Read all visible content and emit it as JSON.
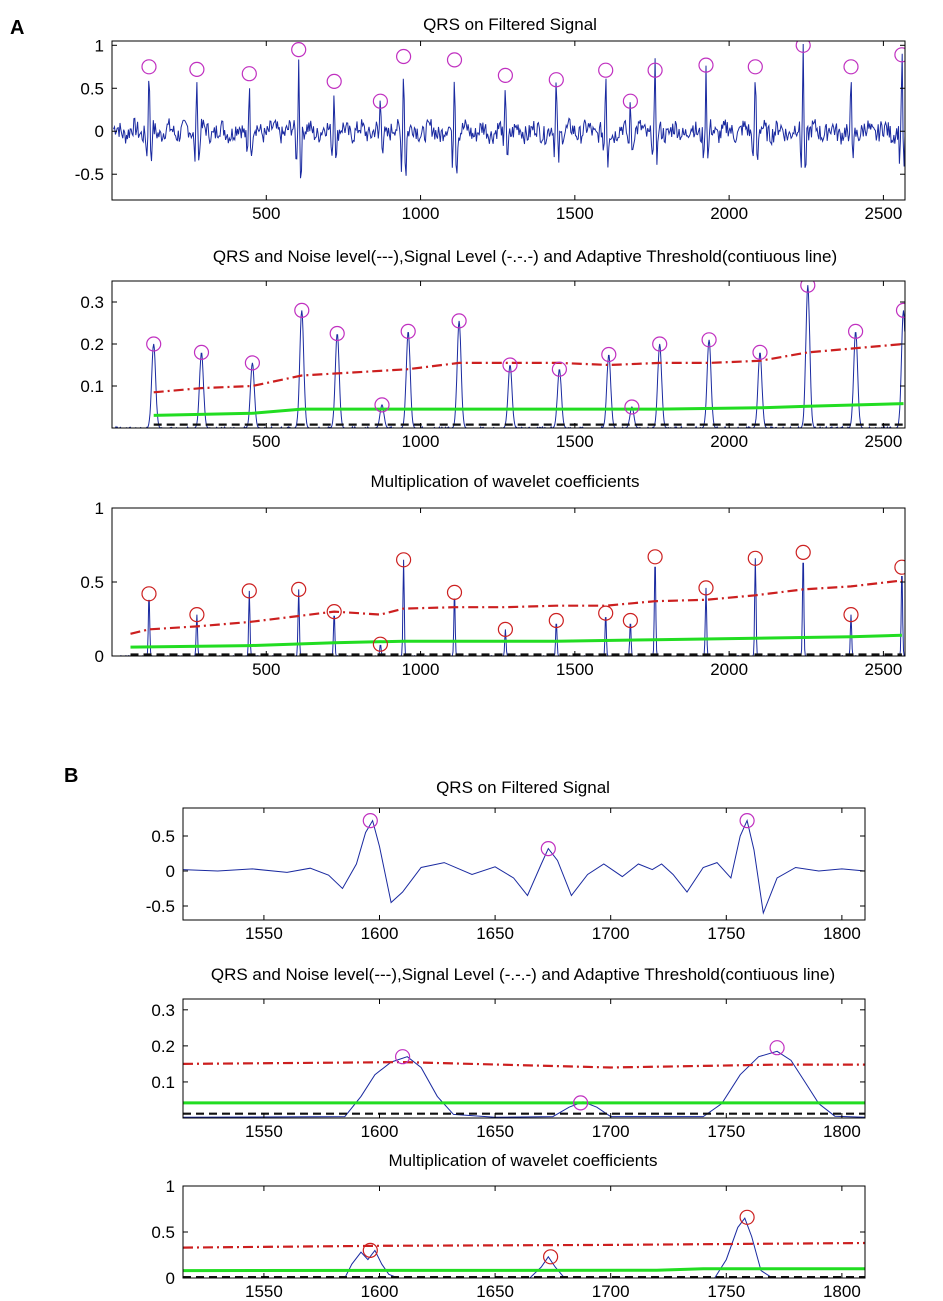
{
  "figure": {
    "panel_labels": [
      "A",
      "B"
    ]
  },
  "colors": {
    "signal": "#1a2aa0",
    "peak_marker": "#c030c0",
    "peak_marker_alt": "#cc2020",
    "signal_level": "#cc1f1f",
    "threshold": "#22dd22",
    "noise_level": "#111111"
  },
  "chart_data": [
    {
      "panel": "A",
      "type": "line",
      "title": "QRS on Filtered Signal",
      "xlim": [
        0,
        2570
      ],
      "ylim": [
        -0.8,
        1.05
      ],
      "xticks": [
        500,
        1000,
        1500,
        2000,
        2500
      ],
      "xticklabels": [
        "500",
        "1000",
        "1500",
        "2000",
        "2500"
      ],
      "yticks": [
        -0.5,
        0,
        0.5,
        1
      ],
      "yticklabels": [
        "-0.5",
        "0",
        "0.5",
        "1"
      ],
      "grid": false,
      "series": [
        {
          "role": "ecg_filtered",
          "color": "#1a2aa0"
        }
      ],
      "peaks": {
        "x": [
          120,
          275,
          445,
          605,
          720,
          870,
          945,
          1110,
          1275,
          1440,
          1600,
          1680,
          1760,
          1925,
          2085,
          2240,
          2395,
          2560
        ],
        "y": [
          0.75,
          0.72,
          0.67,
          0.95,
          0.58,
          0.35,
          0.87,
          0.83,
          0.65,
          0.6,
          0.71,
          0.35,
          0.71,
          0.77,
          0.75,
          1.0,
          0.75,
          0.89
        ],
        "marker_color": "#c030c0"
      }
    },
    {
      "panel": "A",
      "type": "line",
      "title": "QRS  and Noise level(---),Signal Level (-.-.-) and Adaptive Threshold(contiuous line)",
      "xlim": [
        0,
        2570
      ],
      "ylim": [
        0,
        0.35
      ],
      "xticks": [
        500,
        1000,
        1500,
        2000,
        2500
      ],
      "xticklabels": [
        "500",
        "1000",
        "1500",
        "2000",
        "2500"
      ],
      "yticks": [
        0.1,
        0.2,
        0.3
      ],
      "yticklabels": [
        "0.1",
        "0.2",
        "0.3"
      ],
      "grid": false,
      "peaks": {
        "x": [
          135,
          290,
          455,
          615,
          730,
          875,
          960,
          1125,
          1290,
          1450,
          1610,
          1685,
          1775,
          1935,
          2100,
          2255,
          2410,
          2565
        ],
        "y": [
          0.2,
          0.18,
          0.155,
          0.28,
          0.225,
          0.055,
          0.23,
          0.255,
          0.15,
          0.14,
          0.175,
          0.05,
          0.2,
          0.21,
          0.18,
          0.34,
          0.23,
          0.28
        ],
        "marker_color": "#c030c0"
      },
      "signal_level": {
        "x": [
          135,
          290,
          455,
          615,
          730,
          960,
          1125,
          1290,
          1450,
          1610,
          1775,
          1935,
          2100,
          2255,
          2410,
          2565
        ],
        "y": [
          0.085,
          0.095,
          0.1,
          0.125,
          0.13,
          0.14,
          0.155,
          0.155,
          0.155,
          0.15,
          0.155,
          0.155,
          0.16,
          0.18,
          0.19,
          0.2
        ]
      },
      "threshold": {
        "x": [
          135,
          455,
          615,
          1125,
          1450,
          1775,
          2100,
          2255,
          2565
        ],
        "y": [
          0.03,
          0.035,
          0.045,
          0.045,
          0.045,
          0.045,
          0.048,
          0.052,
          0.058
        ]
      },
      "noise_level": {
        "x": [
          135,
          2565
        ],
        "y": [
          0.008,
          0.008
        ]
      }
    },
    {
      "panel": "A",
      "type": "line",
      "title": "Multiplication of wavelet coefficients",
      "xlim": [
        0,
        2570
      ],
      "ylim": [
        0,
        1
      ],
      "xticks": [
        500,
        1000,
        1500,
        2000,
        2500
      ],
      "xticklabels": [
        "500",
        "1000",
        "1500",
        "2000",
        "2500"
      ],
      "yticks": [
        0,
        0.5,
        1
      ],
      "yticklabels": [
        "0",
        "0.5",
        "1"
      ],
      "grid": false,
      "peaks": {
        "x": [
          120,
          275,
          445,
          605,
          720,
          870,
          945,
          1110,
          1275,
          1440,
          1600,
          1680,
          1760,
          1925,
          2085,
          2240,
          2395,
          2560
        ],
        "y": [
          0.42,
          0.28,
          0.44,
          0.45,
          0.3,
          0.08,
          0.65,
          0.43,
          0.18,
          0.24,
          0.29,
          0.24,
          0.67,
          0.46,
          0.66,
          0.7,
          0.28,
          0.6
        ],
        "marker_color": "#cc2020"
      },
      "signal_level": {
        "x": [
          60,
          120,
          275,
          445,
          605,
          720,
          870,
          945,
          1110,
          1275,
          1440,
          1600,
          1760,
          1925,
          2085,
          2240,
          2395,
          2560
        ],
        "y": [
          0.15,
          0.18,
          0.2,
          0.23,
          0.27,
          0.3,
          0.28,
          0.32,
          0.33,
          0.33,
          0.34,
          0.34,
          0.37,
          0.38,
          0.41,
          0.45,
          0.47,
          0.51
        ]
      },
      "threshold": {
        "x": [
          60,
          445,
          720,
          945,
          1440,
          1760,
          2085,
          2395,
          2560
        ],
        "y": [
          0.06,
          0.07,
          0.09,
          0.1,
          0.1,
          0.11,
          0.12,
          0.13,
          0.14
        ]
      },
      "noise_level": {
        "x": [
          60,
          2560
        ],
        "y": [
          0.01,
          0.01
        ]
      }
    },
    {
      "panel": "B",
      "type": "line",
      "title": "QRS on Filtered Signal",
      "xlim": [
        1515,
        1810
      ],
      "ylim": [
        -0.7,
        0.9
      ],
      "xticks": [
        1550,
        1600,
        1650,
        1700,
        1750,
        1800
      ],
      "xticklabels": [
        "1550",
        "1600",
        "1650",
        "1700",
        "1750",
        "1800"
      ],
      "yticks": [
        -0.5,
        0,
        0.5
      ],
      "yticklabels": [
        "-0.5",
        "0",
        "0.5"
      ],
      "grid": false,
      "series": [
        {
          "role": "ecg_filtered",
          "color": "#1a2aa0",
          "x": [
            1515,
            1530,
            1545,
            1560,
            1570,
            1578,
            1584,
            1590,
            1594,
            1597,
            1600,
            1605,
            1610,
            1618,
            1628,
            1640,
            1650,
            1658,
            1664,
            1670,
            1673,
            1677,
            1683,
            1690,
            1697,
            1705,
            1712,
            1718,
            1722,
            1727,
            1733,
            1740,
            1746,
            1752,
            1756,
            1759,
            1762,
            1766,
            1772,
            1780,
            1790,
            1800,
            1810
          ],
          "y": [
            0.02,
            0.0,
            0.03,
            -0.02,
            0.04,
            -0.06,
            -0.25,
            0.1,
            0.55,
            0.72,
            0.35,
            -0.45,
            -0.3,
            0.05,
            0.12,
            -0.05,
            0.06,
            -0.1,
            -0.35,
            0.1,
            0.32,
            0.15,
            -0.35,
            -0.05,
            0.1,
            -0.08,
            0.1,
            0.02,
            0.1,
            -0.05,
            -0.3,
            0.05,
            0.12,
            -0.1,
            0.5,
            0.72,
            0.3,
            -0.6,
            -0.1,
            0.05,
            0.0,
            0.03,
            0.0
          ]
        }
      ],
      "peaks": {
        "x": [
          1596,
          1673,
          1759
        ],
        "y": [
          0.72,
          0.32,
          0.72
        ],
        "marker_color": "#c030c0"
      }
    },
    {
      "panel": "B",
      "type": "line",
      "title": "QRS  and Noise level(---),Signal Level (-.-.-) and Adaptive Threshold(contiuous line)",
      "xlim": [
        1515,
        1810
      ],
      "ylim": [
        0,
        0.33
      ],
      "xticks": [
        1550,
        1600,
        1650,
        1700,
        1750,
        1800
      ],
      "xticklabels": [
        "1550",
        "1600",
        "1650",
        "1700",
        "1750",
        "1800"
      ],
      "yticks": [
        0.1,
        0.2,
        0.3
      ],
      "yticklabels": [
        "0.1",
        "0.2",
        "0.3"
      ],
      "grid": false,
      "series": [
        {
          "role": "qrs_energy",
          "color": "#1a2aa0",
          "x": [
            1515,
            1585,
            1592,
            1598,
            1605,
            1612,
            1618,
            1625,
            1632,
            1650,
            1675,
            1682,
            1688,
            1694,
            1700,
            1740,
            1748,
            1756,
            1764,
            1772,
            1778,
            1784,
            1790,
            1797,
            1810
          ],
          "y": [
            0.002,
            0.004,
            0.06,
            0.12,
            0.155,
            0.17,
            0.14,
            0.06,
            0.01,
            0.002,
            0.004,
            0.03,
            0.045,
            0.03,
            0.004,
            0.004,
            0.04,
            0.12,
            0.17,
            0.185,
            0.16,
            0.1,
            0.04,
            0.005,
            0.002
          ]
        }
      ],
      "peaks": {
        "x": [
          1610,
          1687,
          1772
        ],
        "y": [
          0.17,
          0.042,
          0.195
        ],
        "marker_color": "#c030c0"
      },
      "signal_level": {
        "x": [
          1515,
          1610,
          1700,
          1772,
          1810
        ],
        "y": [
          0.15,
          0.155,
          0.14,
          0.148,
          0.148
        ]
      },
      "threshold": {
        "x": [
          1515,
          1810
        ],
        "y": [
          0.042,
          0.042
        ]
      },
      "noise_level": {
        "x": [
          1515,
          1810
        ],
        "y": [
          0.012,
          0.012
        ]
      }
    },
    {
      "panel": "B",
      "type": "line",
      "title": "Multiplication of wavelet coefficients",
      "xlim": [
        1515,
        1810
      ],
      "ylim": [
        0,
        1
      ],
      "xticks": [
        1550,
        1600,
        1650,
        1700,
        1750,
        1800
      ],
      "xticklabels": [
        "1550",
        "1600",
        "1650",
        "1700",
        "1750",
        "1800"
      ],
      "yticks": [
        0,
        0.5,
        1
      ],
      "yticklabels": [
        "0",
        "0.5",
        "1"
      ],
      "grid": false,
      "series": [
        {
          "role": "wavelet_product",
          "color": "#1a2aa0",
          "x": [
            1515,
            1585,
            1588,
            1592,
            1595,
            1598,
            1601,
            1604,
            1608,
            1665,
            1670,
            1673,
            1676,
            1680,
            1745,
            1750,
            1755,
            1758,
            1761,
            1765,
            1770,
            1810
          ],
          "y": [
            0.0,
            0.0,
            0.15,
            0.28,
            0.2,
            0.3,
            0.15,
            0.04,
            0.0,
            0.0,
            0.12,
            0.23,
            0.12,
            0.0,
            0.0,
            0.2,
            0.55,
            0.65,
            0.45,
            0.08,
            0.0,
            0.0
          ]
        }
      ],
      "peaks": {
        "x": [
          1596,
          1674,
          1759
        ],
        "y": [
          0.3,
          0.23,
          0.66
        ],
        "marker_color": "#cc2020"
      },
      "signal_level": {
        "x": [
          1515,
          1600,
          1700,
          1810
        ],
        "y": [
          0.33,
          0.35,
          0.36,
          0.38
        ]
      },
      "threshold": {
        "x": [
          1515,
          1720,
          1740,
          1810
        ],
        "y": [
          0.08,
          0.085,
          0.1,
          0.1
        ]
      },
      "noise_level": {
        "x": [
          1515,
          1810
        ],
        "y": [
          0.01,
          0.01
        ]
      }
    }
  ]
}
